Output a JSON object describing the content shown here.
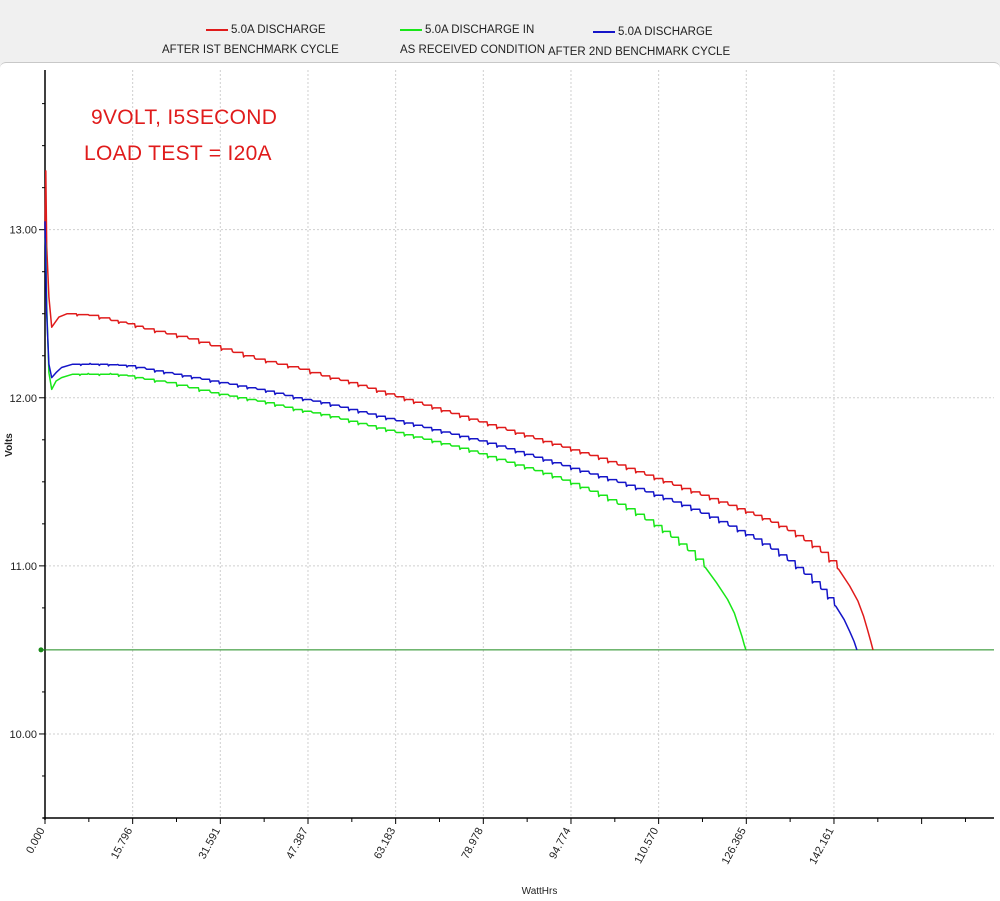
{
  "legend": [
    {
      "line1": "5.0A DISCHARGE",
      "line2": "AFTER IST BENCHMARK CYCLE",
      "color": "#e01b1b",
      "icon": "red-line-swatch"
    },
    {
      "line1": "5.0A DISCHARGE IN",
      "line2": "AS RECEIVED CONDITION",
      "color": "#19e619",
      "icon": "green-line-swatch"
    },
    {
      "line1": "5.0A DISCHARGE",
      "line2": "AFTER 2ND BENCHMARK CYCLE",
      "color": "#1515c8",
      "icon": "blue-line-swatch"
    }
  ],
  "annotation": {
    "line1": "9VOLT, I5SECOND",
    "line2": "LOAD TEST = I20A",
    "color": "#e01b1b"
  },
  "chart_data": {
    "type": "line",
    "title": "",
    "xlabel": "WattHrs",
    "ylabel": "Volts",
    "xlim": [
      0,
      171
    ],
    "ylim": [
      9.5,
      13.95
    ],
    "xticks": [
      "0.000",
      "15.796",
      "31.591",
      "47.387",
      "63.183",
      "78.978",
      "94.774",
      "110.570",
      "126.365",
      "142.161"
    ],
    "xtick_values": [
      0,
      15.796,
      31.591,
      47.387,
      63.183,
      78.978,
      94.774,
      110.57,
      126.365,
      142.161
    ],
    "yticks": [
      "10.00",
      "11.00",
      "12.00",
      "13.00"
    ],
    "ytick_values": [
      10,
      11,
      12,
      13
    ],
    "grid": true,
    "reference_line": {
      "y": 10.5,
      "color": "#1a8a1a"
    },
    "series": [
      {
        "name": "5.0A DISCHARGE AFTER IST BENCHMARK CYCLE",
        "color": "#e01b1b",
        "x": [
          0,
          0.15,
          0.3,
          0.7,
          1.2,
          2.5,
          4,
          8,
          12,
          15,
          18,
          22,
          26,
          30,
          34,
          38,
          42,
          46,
          50,
          55,
          60,
          65,
          70,
          75,
          80,
          85,
          90,
          95,
          100,
          105,
          110,
          115,
          120,
          125,
          128,
          131,
          134,
          137,
          140,
          143,
          145,
          146.5,
          147.5,
          148.2,
          148.8,
          149.2
        ],
        "y": [
          13.0,
          13.35,
          12.9,
          12.6,
          12.42,
          12.48,
          12.5,
          12.49,
          12.46,
          12.44,
          12.41,
          12.38,
          12.35,
          12.31,
          12.27,
          12.23,
          12.2,
          12.17,
          12.13,
          12.09,
          12.04,
          11.99,
          11.94,
          11.89,
          11.84,
          11.79,
          11.74,
          11.69,
          11.64,
          11.58,
          11.52,
          11.46,
          11.4,
          11.34,
          11.3,
          11.26,
          11.21,
          11.15,
          11.08,
          10.98,
          10.88,
          10.79,
          10.7,
          10.62,
          10.55,
          10.5
        ]
      },
      {
        "name": "5.0A DISCHARGE IN AS RECEIVED CONDITION",
        "color": "#19e619",
        "x": [
          0,
          0.15,
          0.3,
          0.7,
          1.2,
          2,
          3,
          5,
          8,
          12,
          15,
          18,
          22,
          26,
          30,
          35,
          40,
          45,
          50,
          55,
          60,
          65,
          70,
          75,
          80,
          85,
          90,
          95,
          100,
          105,
          110,
          113,
          116,
          119,
          121,
          123,
          124.2,
          125,
          125.6,
          126,
          126.3
        ],
        "y": [
          12.95,
          12.9,
          12.55,
          12.15,
          12.05,
          12.1,
          12.12,
          12.14,
          12.14,
          12.14,
          12.13,
          12.11,
          12.09,
          12.06,
          12.03,
          12.0,
          11.97,
          11.93,
          11.9,
          11.86,
          11.82,
          11.78,
          11.74,
          11.7,
          11.65,
          11.6,
          11.55,
          11.49,
          11.42,
          11.34,
          11.24,
          11.17,
          11.09,
          10.99,
          10.9,
          10.8,
          10.72,
          10.64,
          10.58,
          10.53,
          10.5
        ]
      },
      {
        "name": "5.0A DISCHARGE AFTER 2ND BENCHMARK CYCLE",
        "color": "#1515c8",
        "x": [
          0,
          0.15,
          0.3,
          0.7,
          1.2,
          2,
          3,
          5,
          10,
          15,
          20,
          25,
          30,
          35,
          40,
          45,
          50,
          55,
          60,
          65,
          70,
          75,
          80,
          85,
          90,
          95,
          100,
          105,
          110,
          115,
          120,
          125,
          128,
          131,
          134,
          137,
          140,
          142.5,
          144,
          145,
          145.8,
          146.3
        ],
        "y": [
          13.05,
          12.8,
          12.5,
          12.2,
          12.12,
          12.15,
          12.18,
          12.2,
          12.2,
          12.19,
          12.16,
          12.13,
          12.1,
          12.07,
          12.04,
          12.0,
          11.97,
          11.93,
          11.89,
          11.85,
          11.81,
          11.77,
          11.73,
          11.68,
          11.63,
          11.58,
          11.53,
          11.48,
          11.42,
          11.36,
          11.29,
          11.21,
          11.16,
          11.1,
          11.03,
          10.95,
          10.86,
          10.76,
          10.68,
          10.61,
          10.55,
          10.5
        ]
      }
    ]
  }
}
